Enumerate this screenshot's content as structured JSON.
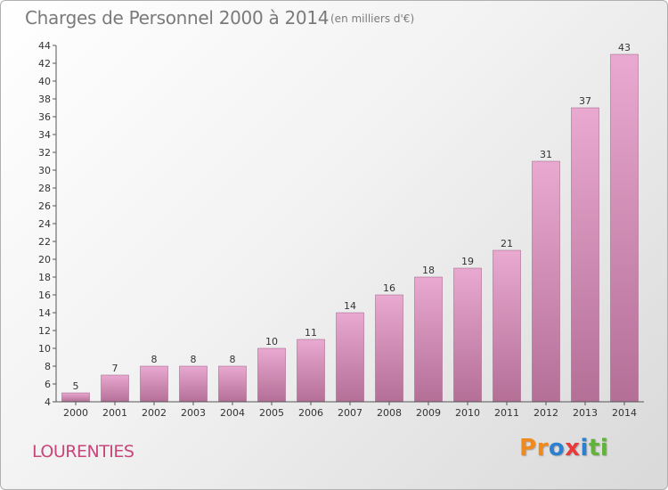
{
  "header": {
    "title": "Charges de Personnel 2000 à 2014",
    "subtitle": "(en milliers d'€)"
  },
  "footer": {
    "town": "LOURENTIES",
    "logo_letters": [
      "P",
      "r",
      "o",
      "x",
      "i",
      "t",
      "i"
    ]
  },
  "colors": {
    "bar_top": "#e9a9d0",
    "bar_bottom": "#b46f97",
    "town": "#c8467a",
    "logo": [
      "#f08a1c",
      "#f08a1c",
      "#2d7fd0",
      "#e83a3a",
      "#2d7fd0",
      "#62b33a",
      "#62b33a"
    ]
  },
  "chart_data": {
    "type": "bar",
    "title": "Charges de Personnel 2000 à 2014",
    "categories": [
      "2000",
      "2001",
      "2002",
      "2003",
      "2004",
      "2005",
      "2006",
      "2007",
      "2008",
      "2009",
      "2010",
      "2011",
      "2012",
      "2013",
      "2014"
    ],
    "values": [
      5,
      7,
      8,
      8,
      8,
      10,
      11,
      14,
      16,
      18,
      19,
      21,
      31,
      37,
      43
    ],
    "ylim": [
      4,
      44
    ],
    "yticks": [
      4,
      6,
      8,
      10,
      12,
      14,
      16,
      18,
      20,
      22,
      24,
      26,
      28,
      30,
      32,
      34,
      36,
      38,
      40,
      42,
      44
    ],
    "grid": false,
    "legend": "none"
  }
}
